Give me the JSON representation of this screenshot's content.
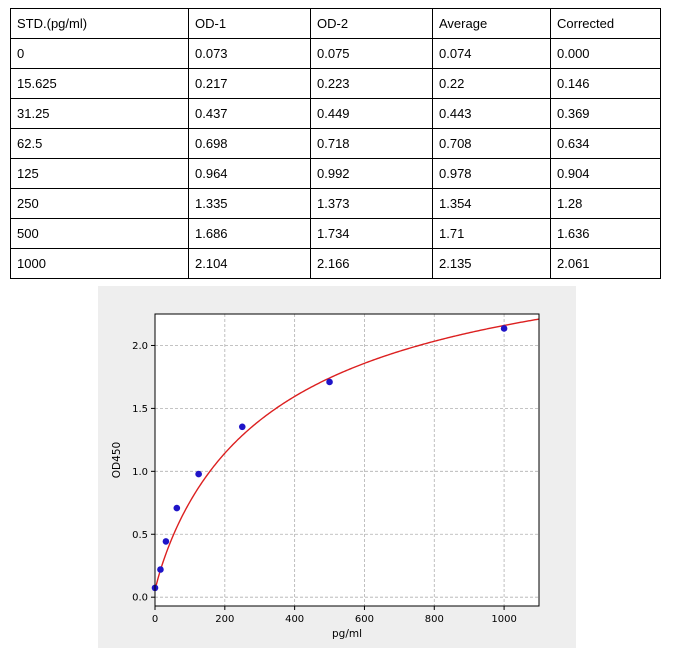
{
  "table": {
    "headers": [
      "STD.(pg/ml)",
      "OD-1",
      "OD-2",
      "Average",
      "Corrected"
    ],
    "rows": [
      [
        "0",
        "0.073",
        "0.075",
        "0.074",
        "0.000"
      ],
      [
        "15.625",
        "0.217",
        "0.223",
        "0.22",
        "0.146"
      ],
      [
        "31.25",
        "0.437",
        "0.449",
        "0.443",
        "0.369"
      ],
      [
        "62.5",
        "0.698",
        "0.718",
        "0.708",
        "0.634"
      ],
      [
        "125",
        "0.964",
        "0.992",
        "0.978",
        "0.904"
      ],
      [
        "250",
        "1.335",
        "1.373",
        "1.354",
        "1.28"
      ],
      [
        "500",
        "1.686",
        "1.734",
        "1.71",
        "1.636"
      ],
      [
        "1000",
        "2.104",
        "2.166",
        "2.135",
        "2.061"
      ]
    ]
  },
  "chart_data": {
    "type": "scatter",
    "xlabel": "pg/ml",
    "ylabel": "OD450",
    "xlim": [
      0,
      1100
    ],
    "ylim": [
      -0.07,
      2.25
    ],
    "xticks": [
      "0",
      "200",
      "400",
      "600",
      "800",
      "1000"
    ],
    "yticks": [
      "0.0",
      "0.5",
      "1.0",
      "1.5",
      "2.0"
    ],
    "grid": true,
    "points": {
      "x": [
        0,
        15.625,
        31.25,
        62.5,
        125,
        250,
        500,
        1000
      ],
      "y": [
        0.074,
        0.22,
        0.443,
        0.708,
        0.978,
        1.354,
        1.71,
        2.135
      ]
    },
    "fit_curve": {
      "type": "4PL",
      "bottom": 0.05,
      "top": 3.0,
      "ec50": 360,
      "hill": 0.9
    },
    "colors": {
      "points": "#1f14c8",
      "curve": "#dc2020",
      "grid": "#b0b0b0"
    }
  }
}
